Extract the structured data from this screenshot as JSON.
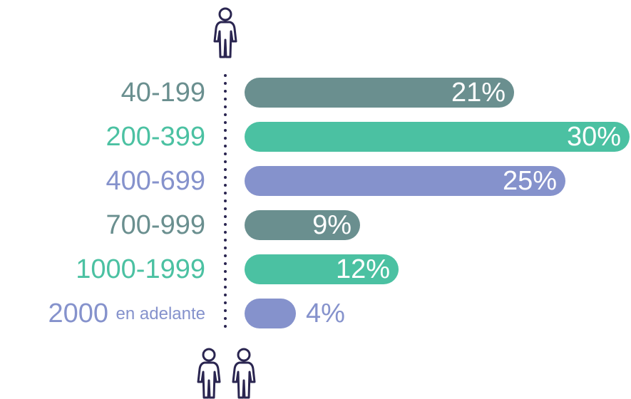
{
  "chart_data": {
    "type": "bar",
    "orientation": "horizontal",
    "categories": [
      "40-199",
      "200-399",
      "400-699",
      "700-999",
      "1000-1999",
      "2000 en adelante"
    ],
    "values": [
      21,
      30,
      25,
      9,
      12,
      4
    ],
    "value_labels": [
      "21%",
      "30%",
      "25%",
      "9%",
      "12%",
      "4%"
    ],
    "colors": [
      "#6a8f8f",
      "#4bc1a2",
      "#8592cc",
      "#6a8f8f",
      "#4bc1a2",
      "#8592cc"
    ]
  }
}
